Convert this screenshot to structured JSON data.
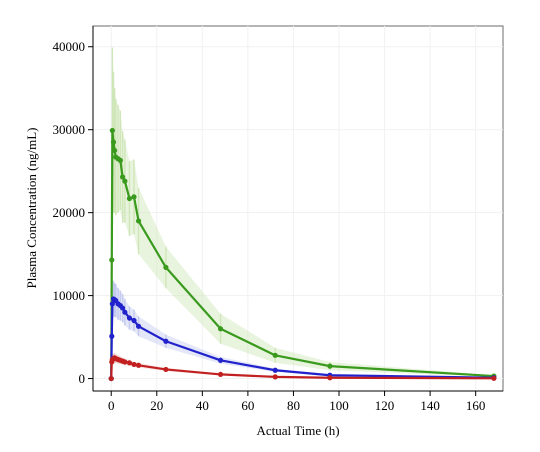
{
  "chart_data": {
    "type": "line",
    "title": "",
    "xlabel": "Actual Time (h)",
    "ylabel": "Plasma Concentration (ng/mL)",
    "xlim": [
      -8,
      172
    ],
    "ylim": [
      -1500,
      42500
    ],
    "x_ticks": [
      "0",
      "20",
      "40",
      "60",
      "80",
      "100",
      "120",
      "140",
      "160"
    ],
    "y_ticks": [
      "0",
      "10000",
      "20000",
      "30000",
      "40000"
    ],
    "x_tick_values": [
      0,
      20,
      40,
      60,
      80,
      100,
      120,
      140,
      160
    ],
    "y_tick_values": [
      0,
      10000,
      20000,
      30000,
      40000
    ],
    "grid": true,
    "legend": "none",
    "series": [
      {
        "color": "#3a9a1e",
        "band_color": "#cfe6b8",
        "points": [
          {
            "x": 0,
            "y": 0,
            "err": 0
          },
          {
            "x": 0.25,
            "y": 14300,
            "err": 5000
          },
          {
            "x": 0.5,
            "y": 29900,
            "err": 10000
          },
          {
            "x": 1,
            "y": 28500,
            "err": 8500
          },
          {
            "x": 1.5,
            "y": 27500,
            "err": 7500
          },
          {
            "x": 2,
            "y": 26700,
            "err": 7000
          },
          {
            "x": 3,
            "y": 26500,
            "err": 6500
          },
          {
            "x": 4,
            "y": 26300,
            "err": 6000
          },
          {
            "x": 5,
            "y": 24300,
            "err": 5500
          },
          {
            "x": 6,
            "y": 23800,
            "err": 5000
          },
          {
            "x": 8,
            "y": 21700,
            "err": 4500
          },
          {
            "x": 10,
            "y": 21900,
            "err": 4500
          },
          {
            "x": 12,
            "y": 19000,
            "err": 4000
          },
          {
            "x": 24,
            "y": 13400,
            "err": 2500
          },
          {
            "x": 48,
            "y": 6000,
            "err": 1800
          },
          {
            "x": 72,
            "y": 2800,
            "err": 900
          },
          {
            "x": 96,
            "y": 1500,
            "err": 500
          },
          {
            "x": 168,
            "y": 300,
            "err": 100
          }
        ]
      },
      {
        "color": "#2222cc",
        "band_color": "#c3c9ef",
        "points": [
          {
            "x": 0,
            "y": 0,
            "err": 0
          },
          {
            "x": 0.25,
            "y": 5100,
            "err": 1500
          },
          {
            "x": 0.5,
            "y": 9000,
            "err": 2500
          },
          {
            "x": 1,
            "y": 9600,
            "err": 2200
          },
          {
            "x": 1.5,
            "y": 9500,
            "err": 2000
          },
          {
            "x": 2,
            "y": 9400,
            "err": 2000
          },
          {
            "x": 3,
            "y": 9000,
            "err": 1900
          },
          {
            "x": 4,
            "y": 8800,
            "err": 1800
          },
          {
            "x": 5,
            "y": 8500,
            "err": 1700
          },
          {
            "x": 6,
            "y": 8000,
            "err": 1600
          },
          {
            "x": 8,
            "y": 7300,
            "err": 1400
          },
          {
            "x": 10,
            "y": 7000,
            "err": 1300
          },
          {
            "x": 12,
            "y": 6300,
            "err": 1200
          },
          {
            "x": 24,
            "y": 4500,
            "err": 800
          },
          {
            "x": 48,
            "y": 2200,
            "err": 400
          },
          {
            "x": 72,
            "y": 1000,
            "err": 200
          },
          {
            "x": 96,
            "y": 400,
            "err": 100
          },
          {
            "x": 168,
            "y": 100,
            "err": 50
          }
        ]
      },
      {
        "color": "#c22020",
        "band_color": "#f0c8c8",
        "points": [
          {
            "x": 0,
            "y": 0,
            "err": 0
          },
          {
            "x": 0.25,
            "y": 2000,
            "err": 500
          },
          {
            "x": 0.5,
            "y": 2300,
            "err": 600
          },
          {
            "x": 1,
            "y": 2400,
            "err": 600
          },
          {
            "x": 1.5,
            "y": 2500,
            "err": 550
          },
          {
            "x": 2,
            "y": 2400,
            "err": 500
          },
          {
            "x": 3,
            "y": 2300,
            "err": 500
          },
          {
            "x": 4,
            "y": 2200,
            "err": 450
          },
          {
            "x": 5,
            "y": 2100,
            "err": 400
          },
          {
            "x": 6,
            "y": 2000,
            "err": 400
          },
          {
            "x": 8,
            "y": 1900,
            "err": 350
          },
          {
            "x": 10,
            "y": 1700,
            "err": 300
          },
          {
            "x": 12,
            "y": 1600,
            "err": 300
          },
          {
            "x": 24,
            "y": 1100,
            "err": 200
          },
          {
            "x": 48,
            "y": 500,
            "err": 100
          },
          {
            "x": 72,
            "y": 200,
            "err": 50
          },
          {
            "x": 96,
            "y": 100,
            "err": 30
          },
          {
            "x": 168,
            "y": 30,
            "err": 10
          }
        ]
      }
    ]
  }
}
